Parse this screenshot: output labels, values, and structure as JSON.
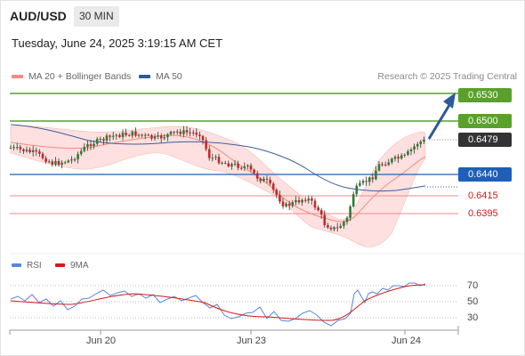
{
  "header": {
    "symbol": "AUD/USD",
    "timeframe": "30 MIN",
    "datetime": "Tuesday, June 24, 2025 3:19:15 AM CET"
  },
  "legend": {
    "items": [
      {
        "label": "MA 20 + Bollinger Bands",
        "color": "#f28b82"
      },
      {
        "label": "MA 50",
        "color": "#2d5a9a"
      }
    ],
    "copyright": "Research © 2025 Trading Central"
  },
  "levels": [
    {
      "value": "0.6530",
      "kind": "resistance",
      "color": "#5aa02c"
    },
    {
      "value": "0.6500",
      "kind": "resistance",
      "color": "#5aa02c"
    },
    {
      "value": "0.6479",
      "kind": "last-price",
      "color": "#333333"
    },
    {
      "value": "0.6440",
      "kind": "pivot",
      "color": "#1f5fb8"
    },
    {
      "value": "0.6415",
      "kind": "support",
      "color": "#d31a1a"
    },
    {
      "value": "0.6395",
      "kind": "support",
      "color": "#d31a1a"
    }
  ],
  "rsi": {
    "legend": [
      {
        "label": "RSI",
        "color": "#5a85d8"
      },
      {
        "label": "9MA",
        "color": "#d31a1a"
      }
    ],
    "ticks": [
      "70",
      "50",
      "30"
    ]
  },
  "xaxis": {
    "labels": [
      "Jun 20",
      "Jun 23",
      "Jun 24"
    ]
  },
  "colors": {
    "bullish": "#2e7d32",
    "bearish": "#c62828",
    "band_fill": "#fde0df",
    "arrow": "#2d5a9a"
  },
  "icons": {
    "projection": "arrow-up-right-icon"
  }
}
